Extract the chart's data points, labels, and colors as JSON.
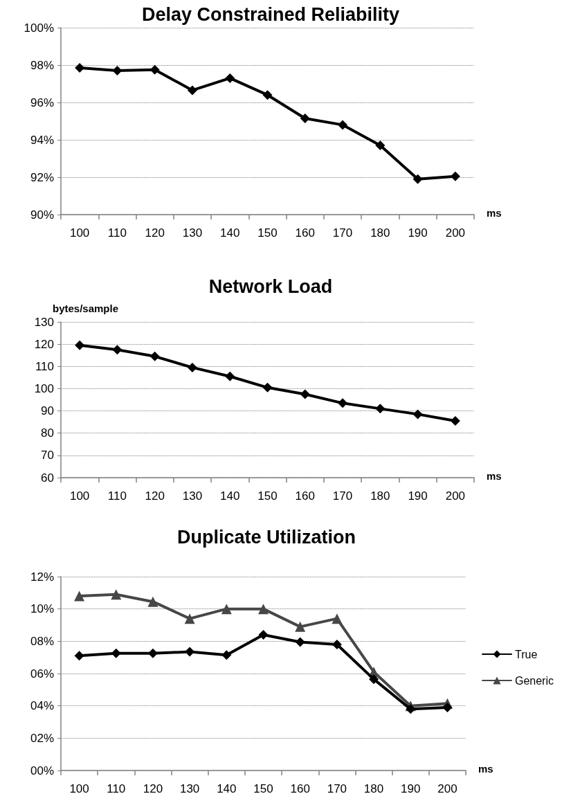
{
  "chart_data": [
    {
      "type": "line",
      "title": "Delay Constrained Reliability",
      "xlabel": "ms",
      "categories": [
        "100",
        "110",
        "120",
        "130",
        "140",
        "150",
        "160",
        "170",
        "180",
        "190",
        "200"
      ],
      "series": [
        {
          "color": "#000000",
          "values": [
            97.85,
            97.7,
            97.75,
            96.65,
            97.3,
            96.4,
            95.15,
            94.8,
            93.7,
            91.9,
            92.05
          ]
        }
      ],
      "ylim": [
        90,
        100
      ],
      "yticks": [
        {
          "value": 90,
          "label": "90%"
        },
        {
          "value": 92,
          "label": "92%"
        },
        {
          "value": 94,
          "label": "94%"
        },
        {
          "value": 96,
          "label": "96%"
        },
        {
          "value": 98,
          "label": "98%"
        },
        {
          "value": 100,
          "label": "100%"
        }
      ],
      "grid": "y",
      "marker": "diamond",
      "line_style": "solid"
    },
    {
      "type": "line",
      "title": "Network Load",
      "xlabel": "ms",
      "ylabel": "bytes/sample",
      "categories": [
        "100",
        "110",
        "120",
        "130",
        "140",
        "150",
        "160",
        "170",
        "180",
        "190",
        "200"
      ],
      "series": [
        {
          "color": "#000000",
          "values": [
            119.5,
            117.5,
            114.5,
            109.5,
            105.5,
            100.5,
            97.5,
            93.5,
            91,
            88.5,
            85.5
          ]
        }
      ],
      "ylim": [
        60,
        130
      ],
      "yticks": [
        60,
        70,
        80,
        90,
        100,
        110,
        120,
        130
      ],
      "grid": "y",
      "marker": "diamond",
      "line_style": "solid"
    },
    {
      "type": "line",
      "title": "Duplicate Utilization",
      "xlabel": "ms",
      "categories": [
        "100",
        "110",
        "120",
        "130",
        "140",
        "150",
        "160",
        "170",
        "180",
        "190",
        "200"
      ],
      "series": [
        {
          "name": "True",
          "color": "#000000",
          "marker": "diamond",
          "values": [
            7.1,
            7.25,
            7.25,
            7.35,
            7.15,
            8.4,
            7.95,
            7.8,
            5.65,
            3.8,
            3.9
          ]
        },
        {
          "name": "Generic",
          "color": "#474747",
          "marker": "triangle",
          "values": [
            10.8,
            10.9,
            10.45,
            9.4,
            10.0,
            10.0,
            8.9,
            9.4,
            6.1,
            4.0,
            4.15
          ]
        }
      ],
      "ylim": [
        0,
        12
      ],
      "yticks": [
        {
          "value": 0,
          "label": "00%"
        },
        {
          "value": 2,
          "label": "02%"
        },
        {
          "value": 4,
          "label": "04%"
        },
        {
          "value": 6,
          "label": "06%"
        },
        {
          "value": 8,
          "label": "08%"
        },
        {
          "value": 10,
          "label": "10%"
        },
        {
          "value": 12,
          "label": "12%"
        }
      ],
      "grid": "y",
      "legend": "right",
      "line_style": "solid"
    }
  ]
}
